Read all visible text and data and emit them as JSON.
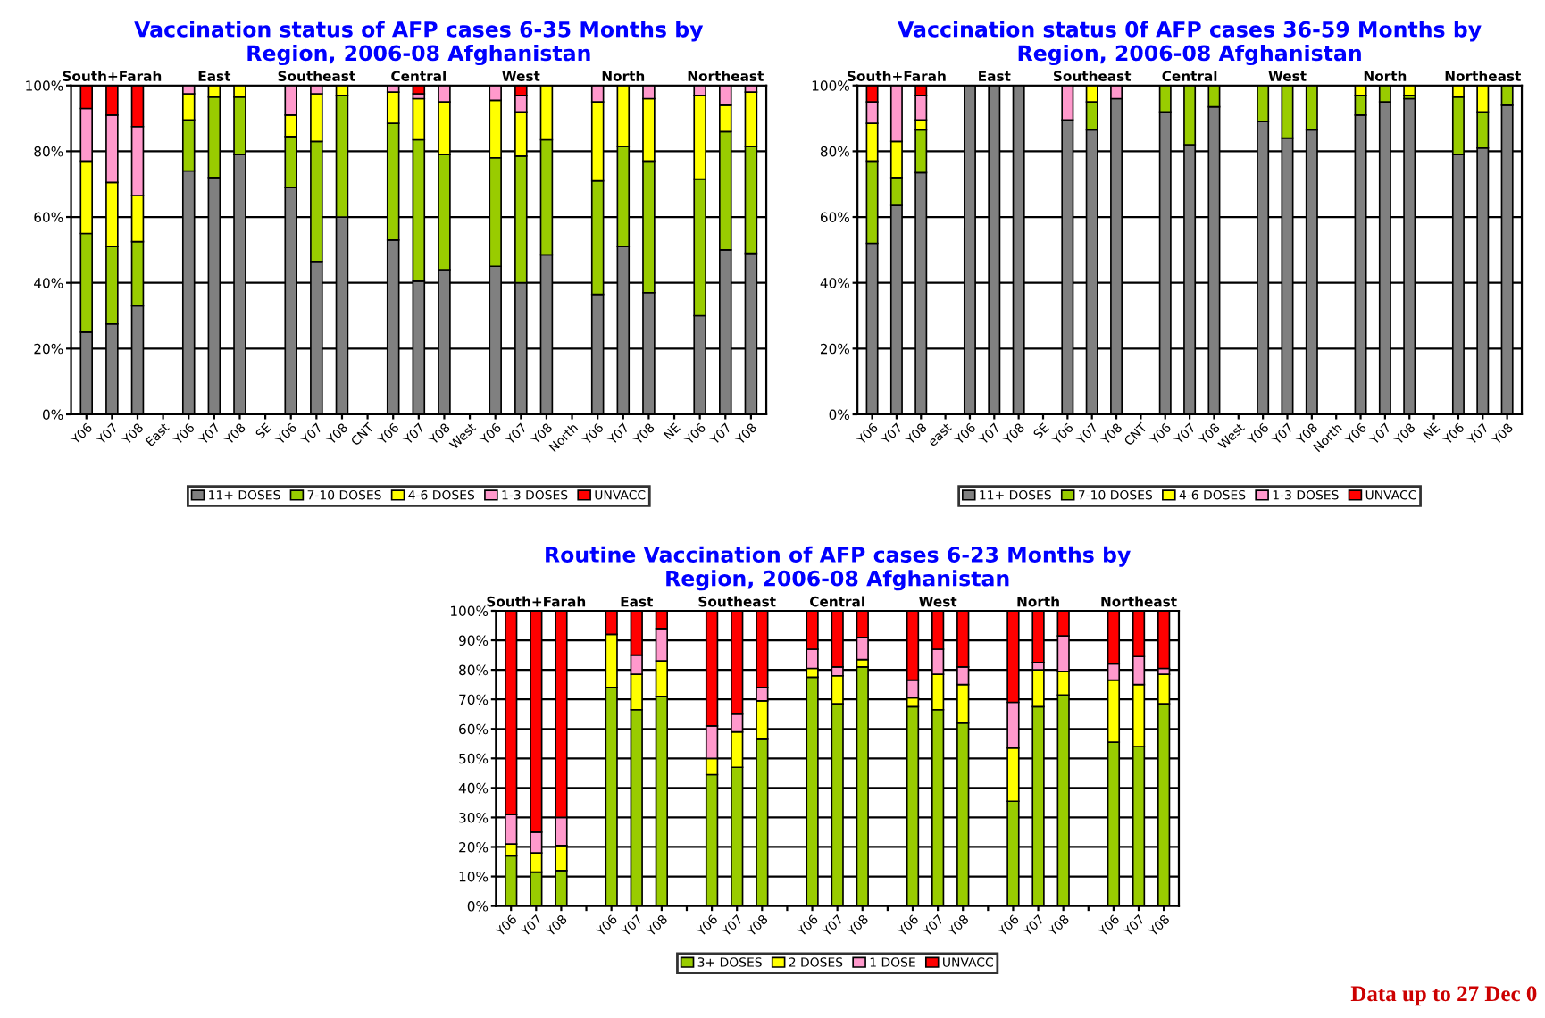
{
  "chart_data": [
    {
      "type": "bar",
      "stacked": true,
      "title": "Vaccination status of AFP cases 6-35 Months by\nRegion, 2006-08 Afghanistan",
      "categories": [
        "Y06",
        "Y07",
        "Y08",
        "East",
        "Y06",
        "Y07",
        "Y08",
        "SE",
        "Y06",
        "Y07",
        "Y08",
        "CNT",
        "Y06",
        "Y07",
        "Y08",
        "West",
        "Y06",
        "Y07",
        "Y08",
        "North",
        "Y06",
        "Y07",
        "Y08",
        "NE",
        "Y06",
        "Y07",
        "Y08"
      ],
      "series": [
        {
          "name": "11+ DOSES",
          "color": "#808080",
          "values": [
            25,
            27.5,
            33,
            null,
            74,
            72,
            79,
            null,
            69,
            46.5,
            60,
            null,
            53,
            40.5,
            44,
            null,
            45,
            40,
            48.5,
            null,
            36.5,
            51,
            37,
            null,
            30,
            50,
            49
          ]
        },
        {
          "name": "7-10 DOSES",
          "color": "#99cc00",
          "values": [
            30,
            23.5,
            19.5,
            null,
            15.5,
            24.5,
            17.5,
            null,
            15.5,
            36.5,
            37,
            null,
            35.5,
            43,
            35,
            null,
            33,
            38.5,
            35,
            null,
            34.5,
            30.5,
            40,
            null,
            41.5,
            36,
            32.5
          ]
        },
        {
          "name": "4-6 DOSES",
          "color": "#ffff00",
          "values": [
            22,
            19.5,
            14,
            null,
            8,
            3.5,
            3.5,
            null,
            6.5,
            14.5,
            3,
            null,
            9.5,
            12.5,
            16,
            null,
            17.5,
            13.5,
            16.5,
            null,
            24,
            18.5,
            19,
            null,
            25.5,
            8,
            16.5
          ]
        },
        {
          "name": "1-3 DOSES",
          "color": "#ff99cc",
          "values": [
            16,
            20.5,
            21,
            null,
            2.5,
            0,
            0,
            null,
            9,
            2.5,
            0,
            null,
            2,
            1.5,
            5,
            null,
            4.5,
            5,
            0,
            null,
            5,
            0,
            4,
            null,
            3,
            6,
            2
          ]
        },
        {
          "name": "UNVACC",
          "color": "#ff0000",
          "values": [
            7,
            9,
            12.5,
            null,
            0,
            0,
            0,
            null,
            0,
            0,
            0,
            null,
            0,
            2.5,
            0,
            null,
            0,
            3,
            0,
            null,
            0,
            0,
            0,
            null,
            0,
            0,
            0
          ]
        }
      ],
      "ylim": [
        0,
        100
      ],
      "yticks": [
        {
          "value": 0,
          "label": "0%"
        },
        {
          "value": 20,
          "label": "20%"
        },
        {
          "value": 40,
          "label": "40%"
        },
        {
          "value": 60,
          "label": "60%"
        },
        {
          "value": 80,
          "label": "80%"
        },
        {
          "value": 100,
          "label": "100%"
        }
      ],
      "grid": "y",
      "legend": "bottom",
      "annotations": [
        "South+Farah",
        "East",
        "Southeast",
        "Central",
        "West",
        "North",
        "Northeast"
      ]
    },
    {
      "type": "bar",
      "stacked": true,
      "title": "Vaccination status 0f AFP cases 36-59 Months by\nRegion, 2006-08 Afghanistan",
      "categories": [
        "Y06",
        "Y07",
        "Y08",
        "east",
        "Y06",
        "Y07",
        "Y08",
        "SE",
        "Y06",
        "Y07",
        "Y08",
        "CNT",
        "Y06",
        "Y07",
        "Y08",
        "West",
        "Y06",
        "Y07",
        "Y08",
        "North",
        "Y06",
        "Y07",
        "Y08",
        "NE",
        "Y06",
        "Y07",
        "Y08"
      ],
      "series": [
        {
          "name": "11+ DOSES",
          "color": "#808080",
          "values": [
            52,
            63.5,
            73.5,
            null,
            100,
            100,
            100,
            null,
            89.5,
            86.5,
            96,
            null,
            92,
            82,
            93.5,
            null,
            89,
            84,
            86.5,
            null,
            91,
            95,
            96,
            null,
            79,
            81,
            94
          ]
        },
        {
          "name": "7-10 DOSES",
          "color": "#99cc00",
          "values": [
            25,
            8.5,
            13,
            null,
            0,
            0,
            0,
            null,
            0,
            8.5,
            0,
            null,
            8,
            18,
            6.5,
            null,
            11,
            16,
            13.5,
            null,
            6,
            5,
            1,
            null,
            17.5,
            11,
            6
          ]
        },
        {
          "name": "4-6 DOSES",
          "color": "#ffff00",
          "values": [
            11.5,
            11,
            3,
            null,
            0,
            0,
            0,
            null,
            0,
            5,
            0,
            null,
            0,
            0,
            0,
            null,
            0,
            0,
            0,
            null,
            3,
            0,
            3,
            null,
            3.5,
            8,
            0
          ]
        },
        {
          "name": "1-3 DOSES",
          "color": "#ff99cc",
          "values": [
            6.5,
            17,
            7.5,
            null,
            0,
            0,
            0,
            null,
            10.5,
            0,
            4,
            null,
            0,
            0,
            0,
            null,
            0,
            0,
            0,
            null,
            0,
            0,
            0,
            null,
            0,
            0,
            0
          ]
        },
        {
          "name": "UNVACC",
          "color": "#ff0000",
          "values": [
            5,
            0,
            3,
            null,
            0,
            0,
            0,
            null,
            0,
            0,
            0,
            null,
            0,
            0,
            0,
            null,
            0,
            0,
            0,
            null,
            0,
            0,
            0,
            null,
            0,
            0,
            0
          ]
        }
      ],
      "ylim": [
        0,
        100
      ],
      "yticks": [
        {
          "value": 0,
          "label": "0%"
        },
        {
          "value": 20,
          "label": "20%"
        },
        {
          "value": 40,
          "label": "40%"
        },
        {
          "value": 60,
          "label": "60%"
        },
        {
          "value": 80,
          "label": "80%"
        },
        {
          "value": 100,
          "label": "100%"
        }
      ],
      "grid": "y",
      "legend": "bottom",
      "annotations": [
        "South+Farah",
        "East",
        "Southeast",
        "Central",
        "West",
        "North",
        "Northeast"
      ]
    },
    {
      "type": "bar",
      "stacked": true,
      "title": "Routine Vaccination of AFP cases 6-23 Months by\nRegion, 2006-08 Afghanistan",
      "categories": [
        "Y06",
        "Y07",
        "Y08",
        null,
        "Y06",
        "Y07",
        "Y08",
        null,
        "Y06",
        "Y07",
        "Y08",
        null,
        "Y06",
        "Y07",
        "Y08",
        null,
        "Y06",
        "Y07",
        "Y08",
        null,
        "Y06",
        "Y07",
        "Y08",
        null,
        "Y06",
        "Y07",
        "Y08"
      ],
      "series": [
        {
          "name": "3+ DOSES",
          "color": "#99cc00",
          "values": [
            17,
            11.5,
            12,
            null,
            74,
            66.5,
            71,
            null,
            44.5,
            47,
            56.5,
            null,
            77.5,
            68.5,
            81,
            null,
            67.5,
            66.5,
            62,
            null,
            35.5,
            67.5,
            71.5,
            null,
            55.5,
            54,
            68.5
          ]
        },
        {
          "name": "2 DOSES",
          "color": "#ffff00",
          "values": [
            4,
            6.5,
            8.5,
            null,
            18,
            12,
            12,
            null,
            5.5,
            12,
            13,
            null,
            3,
            9.5,
            2.5,
            null,
            3,
            12,
            13,
            null,
            18,
            12.5,
            8,
            null,
            21,
            21,
            10
          ]
        },
        {
          "name": "1 DOSE",
          "color": "#ff99cc",
          "values": [
            10,
            7,
            9.5,
            null,
            0,
            6.5,
            11,
            null,
            11,
            6,
            4.5,
            null,
            6.5,
            3,
            7.5,
            null,
            6,
            8.5,
            6,
            null,
            15.5,
            2.5,
            12,
            null,
            5.5,
            9.5,
            2
          ]
        },
        {
          "name": "UNVACC",
          "color": "#ff0000",
          "values": [
            69,
            75,
            70,
            null,
            8,
            15,
            6,
            null,
            39,
            35,
            26,
            null,
            13,
            19,
            9,
            null,
            23.5,
            13,
            19,
            null,
            31,
            17.5,
            8.5,
            null,
            18,
            15.5,
            19.5
          ]
        }
      ],
      "ylim": [
        0,
        100
      ],
      "yticks": [
        {
          "value": 0,
          "label": "0%"
        },
        {
          "value": 10,
          "label": "10%"
        },
        {
          "value": 20,
          "label": "20%"
        },
        {
          "value": 30,
          "label": "30%"
        },
        {
          "value": 40,
          "label": "40%"
        },
        {
          "value": 50,
          "label": "50%"
        },
        {
          "value": 60,
          "label": "60%"
        },
        {
          "value": 70,
          "label": "70%"
        },
        {
          "value": 80,
          "label": "80%"
        },
        {
          "value": 90,
          "label": "90%"
        },
        {
          "value": 100,
          "label": "100%"
        }
      ],
      "grid": "y",
      "legend": "bottom",
      "annotations": [
        "South+Farah",
        "East",
        "Southeast",
        "Central",
        "West",
        "North",
        "Northeast",
        "Data up to 27 Dec 0"
      ]
    }
  ]
}
